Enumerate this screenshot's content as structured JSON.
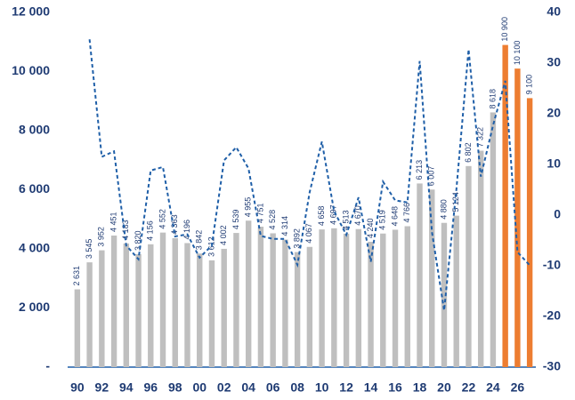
{
  "chart_data": {
    "type": "bar-line",
    "categories": [
      "90",
      null,
      "92",
      null,
      "94",
      null,
      "96",
      null,
      "98",
      null,
      "00",
      null,
      "02",
      null,
      "04",
      null,
      "06",
      null,
      "08",
      null,
      "10",
      null,
      "12",
      null,
      "14",
      null,
      "16",
      null,
      "18",
      null,
      "20",
      null,
      "22",
      null,
      "24",
      null,
      "26",
      null
    ],
    "series": [
      {
        "type": "bar",
        "colors": [
          "#bfbfbf",
          "#bfbfbf",
          "#bfbfbf",
          "#bfbfbf",
          "#bfbfbf",
          "#bfbfbf",
          "#bfbfbf",
          "#bfbfbf",
          "#bfbfbf",
          "#bfbfbf",
          "#bfbfbf",
          "#bfbfbf",
          "#bfbfbf",
          "#bfbfbf",
          "#bfbfbf",
          "#bfbfbf",
          "#bfbfbf",
          "#bfbfbf",
          "#bfbfbf",
          "#bfbfbf",
          "#bfbfbf",
          "#bfbfbf",
          "#bfbfbf",
          "#bfbfbf",
          "#bfbfbf",
          "#bfbfbf",
          "#bfbfbf",
          "#bfbfbf",
          "#bfbfbf",
          "#bfbfbf",
          "#bfbfbf",
          "#bfbfbf",
          "#bfbfbf",
          "#bfbfbf",
          "#bfbfbf",
          "#ed7d31",
          "#ed7d31",
          "#ed7d31"
        ],
        "values": [
          2631,
          3545,
          3952,
          4451,
          4183,
          3820,
          4156,
          4552,
          4363,
          4196,
          3842,
          3612,
          4002,
          4539,
          4955,
          4751,
          4528,
          4314,
          3892,
          4067,
          4658,
          4697,
          4513,
          4670,
          4240,
          4519,
          4648,
          4766,
          6213,
          6007,
          4880,
          5124,
          6802,
          7322,
          8618,
          10900,
          10100,
          9100
        ],
        "value_labels": [
          "2 631",
          "3 545",
          "3 952",
          "4 451",
          "4 183",
          "3 820",
          "4 156",
          "4 552",
          "4 363",
          "4 196",
          "3 842",
          "3 612",
          "4 002",
          "4 539",
          "4 955",
          "4 751",
          "4 528",
          "4 314",
          "3 892",
          "4 067",
          "4 658",
          "4 697",
          "4 513",
          "4 670",
          "4 240",
          "4 519",
          "4 648",
          "4 766",
          "6 213",
          "6 007",
          "4 880",
          "5 124",
          "6 802",
          "7 322",
          "8 618",
          "10 900",
          "10 100",
          "9 100"
        ]
      },
      {
        "type": "line",
        "axis": "y2",
        "color": "#1f5fa8",
        "dashed": true,
        "values": [
          null,
          34.7,
          11.5,
          12.6,
          -6,
          -8.7,
          8.8,
          9.5,
          -4.2,
          -3.8,
          -8.4,
          -6,
          10.8,
          13.4,
          9.2,
          -4.1,
          -4.7,
          -4.7,
          -9.8,
          4.5,
          14.5,
          0.8,
          -3.9,
          3.5,
          -9.2,
          6.6,
          2.9,
          2.5,
          30.4,
          -3.3,
          -18.8,
          5,
          32.7,
          7.6,
          17.7,
          26.5,
          -7.3,
          -9.9
        ]
      }
    ],
    "ylim": [
      0,
      12000
    ],
    "yticks": [
      {
        "value": 0,
        "label": "-"
      },
      {
        "value": 2000,
        "label": "2 000"
      },
      {
        "value": 4000,
        "label": "4 000"
      },
      {
        "value": 6000,
        "label": "6 000"
      },
      {
        "value": 8000,
        "label": "8 000"
      },
      {
        "value": 10000,
        "label": "10 000"
      },
      {
        "value": 12000,
        "label": "12 000"
      }
    ],
    "y2lim": [
      -30,
      40
    ],
    "y2ticks": [
      -30,
      -20,
      -10,
      0,
      10,
      20,
      30,
      40
    ]
  }
}
